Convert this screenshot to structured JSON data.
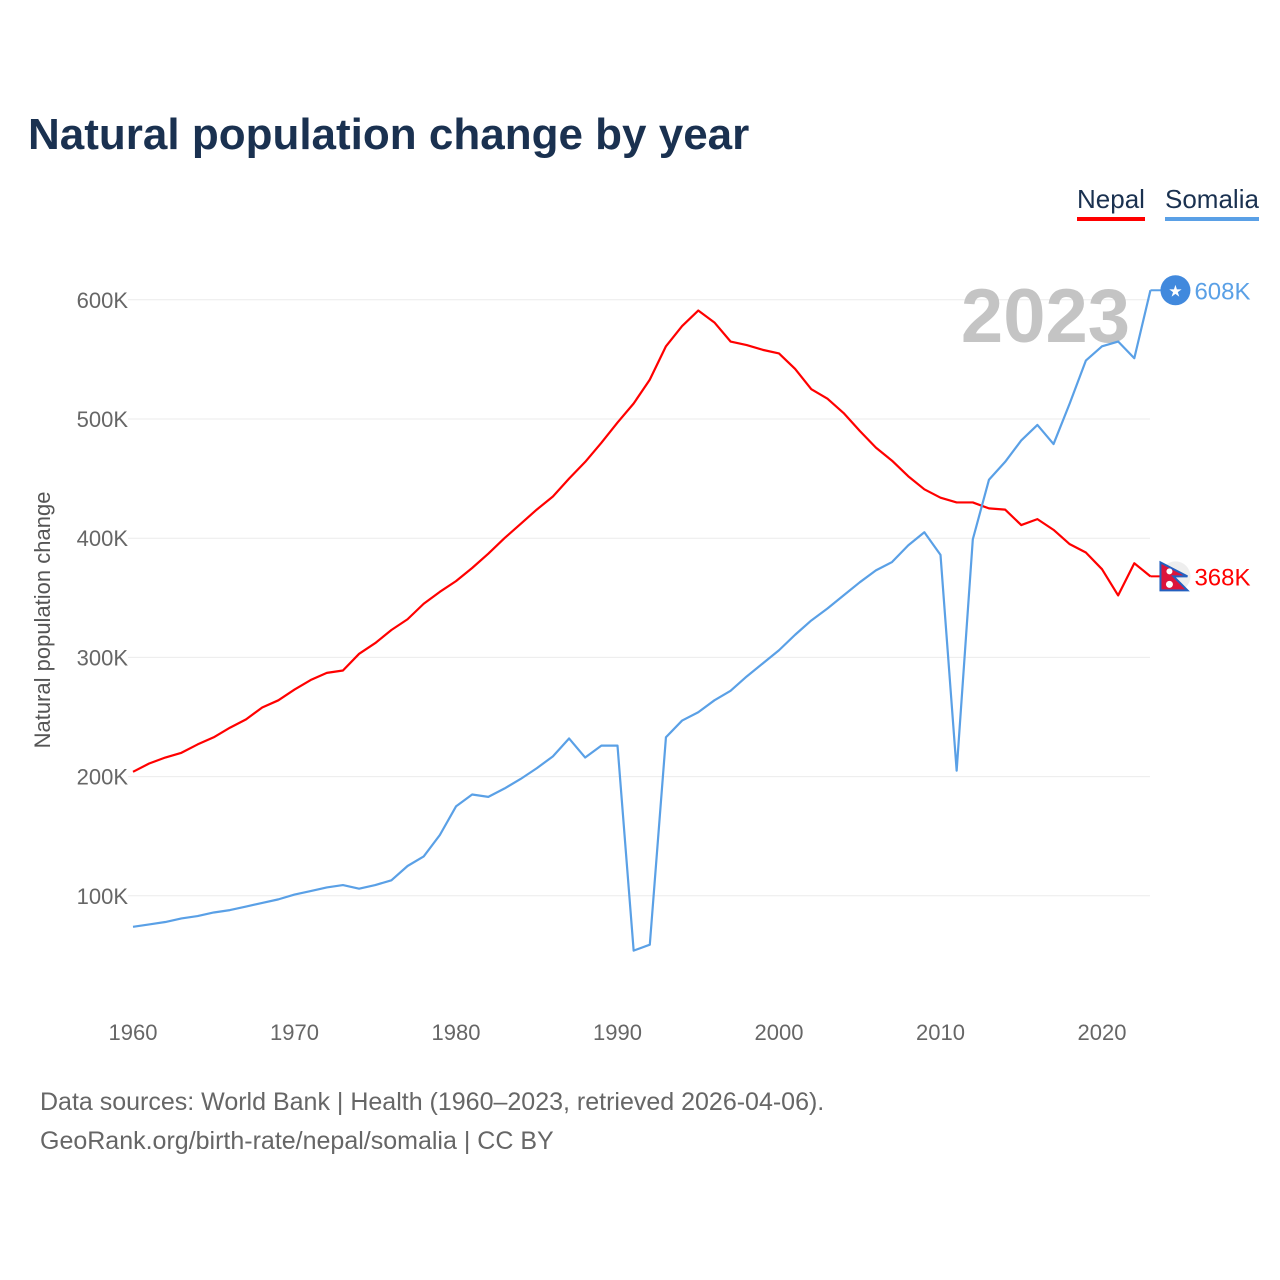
{
  "chart_data": {
    "type": "line",
    "title": "Natural population change by year",
    "xlabel": "",
    "ylabel": "Natural population change",
    "xlim": [
      1960,
      2023
    ],
    "ylim": [
      0,
      650000
    ],
    "x_ticks": [
      "1960",
      "1970",
      "1980",
      "1990",
      "2000",
      "2010",
      "2020"
    ],
    "y_ticks": [
      {
        "v": 100000,
        "label": "100K"
      },
      {
        "v": 200000,
        "label": "200K"
      },
      {
        "v": 300000,
        "label": "300K"
      },
      {
        "v": 400000,
        "label": "400K"
      },
      {
        "v": 500000,
        "label": "500K"
      },
      {
        "v": 600000,
        "label": "600K"
      }
    ],
    "grid": true,
    "legend_position": "top-right",
    "current_year_label": "2023",
    "x_start": 1960,
    "series": [
      {
        "name": "Nepal",
        "color": "#ff0000",
        "flag_icon": "nepal-flag-icon",
        "end_label": "368K",
        "values": [
          204,
          211,
          216,
          220,
          227,
          233,
          241,
          248,
          258,
          264,
          273,
          281,
          287,
          289,
          303,
          312,
          323,
          332,
          345,
          355,
          364,
          375,
          387,
          400,
          412,
          424,
          435,
          450,
          464,
          480,
          497,
          513,
          533,
          561,
          578,
          591,
          581,
          565,
          562,
          558,
          555,
          542,
          525,
          517,
          505,
          490,
          476,
          465,
          452,
          441,
          434,
          430,
          430,
          425,
          424,
          411,
          416,
          407,
          395,
          388,
          374,
          352,
          379,
          368
        ]
      },
      {
        "name": "Somalia",
        "color": "#5aa0e6",
        "flag_icon": "somalia-flag-icon",
        "end_label": "608K",
        "values": [
          74,
          76,
          78,
          81,
          83,
          86,
          88,
          91,
          94,
          97,
          101,
          104,
          107,
          109,
          106,
          109,
          113,
          125,
          133,
          151,
          175,
          185,
          183,
          190,
          198,
          207,
          217,
          232,
          216,
          226,
          226,
          54,
          59,
          233,
          247,
          254,
          264,
          272,
          284,
          295,
          306,
          319,
          331,
          341,
          352,
          363,
          373,
          380,
          394,
          405,
          386,
          205,
          399,
          449,
          464,
          482,
          495,
          479,
          513,
          549,
          561,
          565,
          551,
          608
        ]
      }
    ],
    "value_unit": "thousands"
  },
  "footer": {
    "line1": "Data sources: World Bank | Health (1960–2023, retrieved 2026-04-06).",
    "line2": "GeoRank.org/birth-rate/nepal/somalia | CC BY"
  }
}
